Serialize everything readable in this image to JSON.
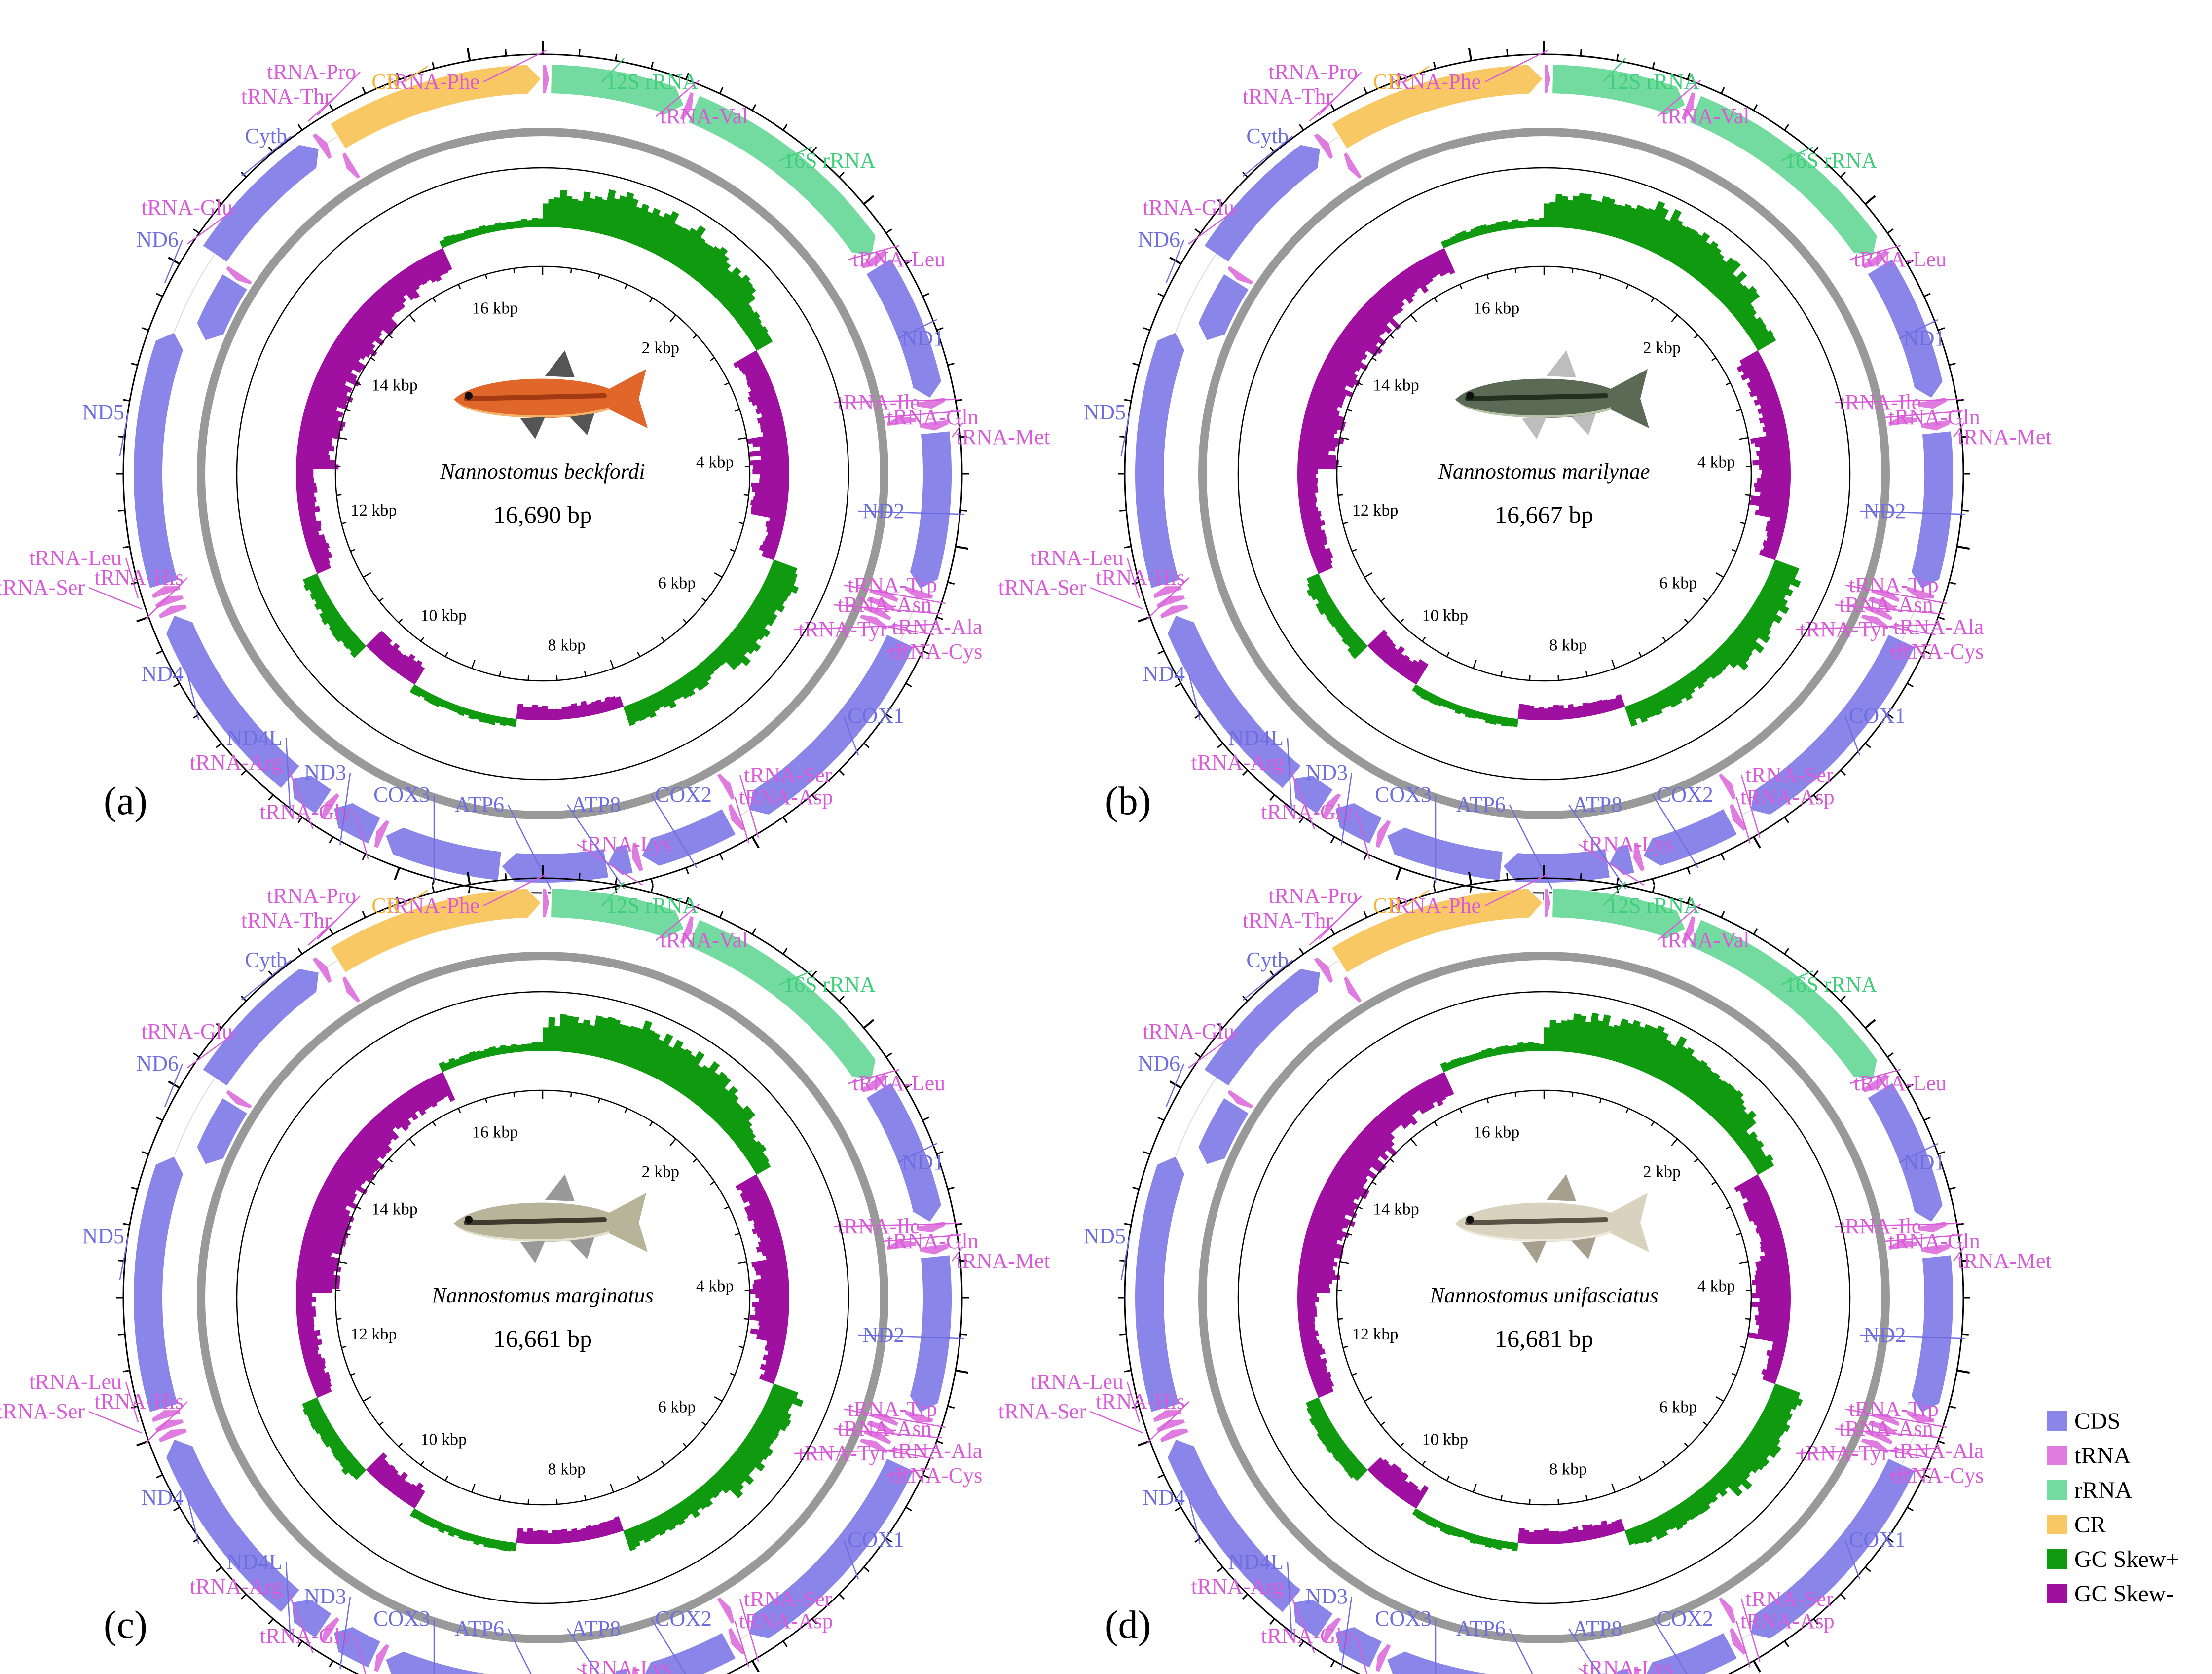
{
  "colors": {
    "CDS": "#8a85e8",
    "tRNA": "#e07be0",
    "rRNA": "#74dba0",
    "CR": "#f8c865",
    "gc_pos": "#109a10",
    "gc_neg": "#a010a0",
    "ring": "#999999",
    "cds_text": "#6f6ee0",
    "trna_text": "#d95bd9",
    "rrna_text": "#3fcf7a",
    "cr_text": "#f3b533"
  },
  "legend": [
    {
      "key": "CDS",
      "label": "CDS",
      "color": "#8a85e8"
    },
    {
      "key": "tRNA",
      "label": "tRNA",
      "color": "#e07be0"
    },
    {
      "key": "rRNA",
      "label": "rRNA",
      "color": "#74dba0"
    },
    {
      "key": "CR",
      "label": "CR",
      "color": "#f8c865"
    },
    {
      "key": "gc_pos",
      "label": "GC Skew+",
      "color": "#109a10"
    },
    {
      "key": "gc_neg",
      "label": "GC Skew-",
      "color": "#a010a0"
    }
  ],
  "tick_labels": [
    "2 kbp",
    "4 kbp",
    "6 kbp",
    "8 kbp",
    "10 kbp",
    "12 kbp",
    "14 kbp",
    "16 kbp"
  ],
  "panels": [
    {
      "letter": "(a)",
      "species": "Nannostomus beckfordi",
      "size": "16,690 bp"
    },
    {
      "letter": "(b)",
      "species": "Nannostomus marilynae",
      "size": "16,667 bp"
    },
    {
      "letter": "(c)",
      "species": "Nannostomus marginatus",
      "size": "16,661 bp"
    },
    {
      "letter": "(d)",
      "species": "Nannostomus unifasciatus",
      "size": "16,681 bp"
    }
  ],
  "genes": [
    {
      "name": "tRNA-Phe",
      "type": "tRNA"
    },
    {
      "name": "12S rRNA",
      "type": "rRNA"
    },
    {
      "name": "tRNA-Val",
      "type": "tRNA"
    },
    {
      "name": "16S rRNA",
      "type": "rRNA"
    },
    {
      "name": "tRNA-Leu",
      "type": "tRNA"
    },
    {
      "name": "ND1",
      "type": "CDS"
    },
    {
      "name": "tRNA-Ile",
      "type": "tRNA"
    },
    {
      "name": "tRNA-Gln",
      "type": "tRNA"
    },
    {
      "name": "tRNA-Met",
      "type": "tRNA"
    },
    {
      "name": "ND2",
      "type": "CDS"
    },
    {
      "name": "tRNA-Trp",
      "type": "tRNA"
    },
    {
      "name": "tRNA-Asn",
      "type": "tRNA"
    },
    {
      "name": "tRNA-Tyr",
      "type": "tRNA"
    },
    {
      "name": "tRNA-Ala",
      "type": "tRNA"
    },
    {
      "name": "tRNA-Cys",
      "type": "tRNA"
    },
    {
      "name": "COX1",
      "type": "CDS"
    },
    {
      "name": "tRNA-Ser",
      "type": "tRNA"
    },
    {
      "name": "tRNA-Asp",
      "type": "tRNA"
    },
    {
      "name": "COX2",
      "type": "CDS"
    },
    {
      "name": "tRNA-Lys",
      "type": "tRNA"
    },
    {
      "name": "ATP8",
      "type": "CDS"
    },
    {
      "name": "ATP6",
      "type": "CDS"
    },
    {
      "name": "COX3",
      "type": "CDS"
    },
    {
      "name": "tRNA-Gly",
      "type": "tRNA"
    },
    {
      "name": "ND3",
      "type": "CDS"
    },
    {
      "name": "tRNA-Arg",
      "type": "tRNA"
    },
    {
      "name": "ND4L",
      "type": "CDS"
    },
    {
      "name": "ND4",
      "type": "CDS"
    },
    {
      "name": "tRNA-His",
      "type": "tRNA"
    },
    {
      "name": "tRNA-Ser",
      "type": "tRNA"
    },
    {
      "name": "tRNA-Leu",
      "type": "tRNA"
    },
    {
      "name": "ND5",
      "type": "CDS"
    },
    {
      "name": "ND6",
      "type": "CDS"
    },
    {
      "name": "tRNA-Glu",
      "type": "tRNA"
    },
    {
      "name": "Cytb",
      "type": "CDS"
    },
    {
      "name": "tRNA-Thr",
      "type": "tRNA"
    },
    {
      "name": "tRNA-Pro",
      "type": "tRNA"
    },
    {
      "name": "CR",
      "type": "CR"
    }
  ]
}
